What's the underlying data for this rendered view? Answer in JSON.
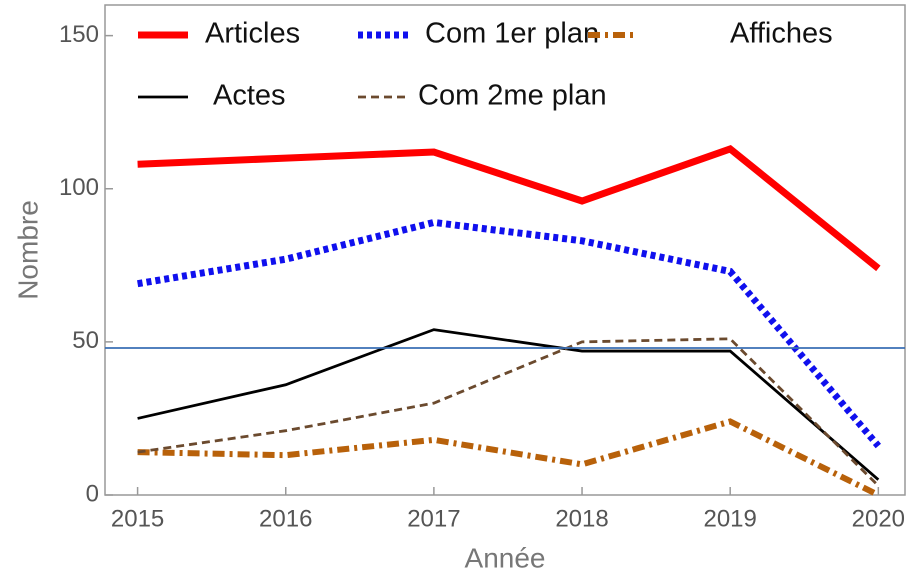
{
  "chart_data": {
    "type": "line",
    "xlabel": "Année",
    "ylabel": "Nombre",
    "x": [
      2015,
      2016,
      2017,
      2018,
      2019,
      2020
    ],
    "series": [
      {
        "name": "Articles",
        "color": "#ff0000",
        "values": [
          108,
          110,
          112,
          96,
          113,
          74
        ]
      },
      {
        "name": "Com 1er plan",
        "color": "#1010ee",
        "values": [
          69,
          77,
          89,
          83,
          73,
          16
        ]
      },
      {
        "name": "Affiches",
        "color": "#b8610a",
        "values": [
          14,
          13,
          18,
          10,
          24,
          0
        ]
      },
      {
        "name": "Actes",
        "color": "#000000",
        "values": [
          25,
          36,
          54,
          47,
          47,
          5
        ]
      },
      {
        "name": "Com 2me plan",
        "color": "#6b4a2e",
        "values": [
          14,
          21,
          30,
          50,
          51,
          3
        ]
      }
    ],
    "reference_line": {
      "value": 48,
      "color": "#3a6fb5"
    },
    "xlim": [
      2014.78,
      2020.18
    ],
    "ylim": [
      0,
      160
    ],
    "xticks": [
      2015,
      2016,
      2017,
      2018,
      2019,
      2020
    ],
    "yticks": [
      0,
      50,
      100,
      150
    ]
  }
}
